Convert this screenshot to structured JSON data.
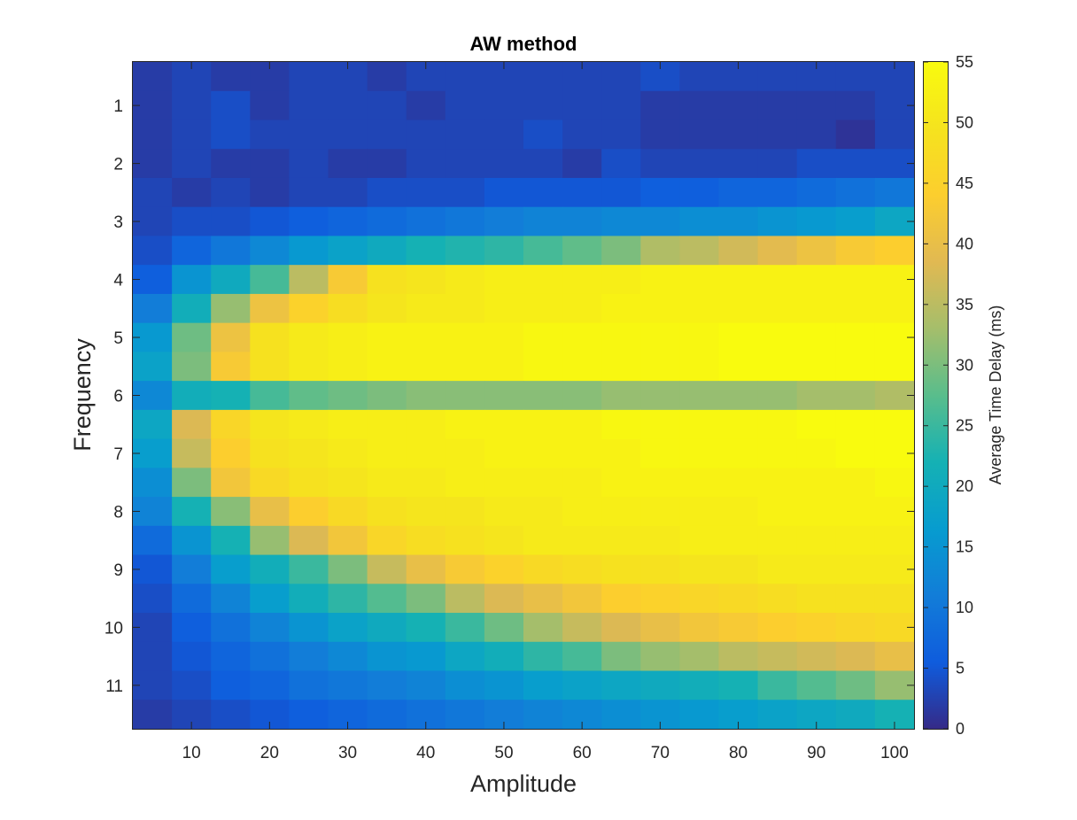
{
  "chart_data": {
    "type": "heatmap",
    "title": "AW method",
    "xlabel": "Amplitude",
    "ylabel": "Frequency",
    "colorbar_label": "Average Time Delay (ms)",
    "colormap": "parula",
    "x": [
      5,
      10,
      15,
      20,
      25,
      30,
      35,
      40,
      45,
      50,
      55,
      60,
      65,
      70,
      75,
      80,
      85,
      90,
      95,
      100
    ],
    "y": [
      0.5,
      1,
      1.5,
      2,
      2.5,
      3,
      3.5,
      4,
      4.5,
      5,
      5.5,
      6,
      6.5,
      7,
      7.5,
      8,
      8.5,
      9,
      9.5,
      10,
      10.5,
      11,
      11.5
    ],
    "xlim": [
      2.5,
      102.5
    ],
    "ylim": [
      0.25,
      11.75
    ],
    "xticks": [
      "10",
      "20",
      "30",
      "40",
      "50",
      "60",
      "70",
      "80",
      "90",
      "100"
    ],
    "yticks": [
      "1",
      "2",
      "3",
      "4",
      "5",
      "6",
      "7",
      "8",
      "9",
      "10",
      "11"
    ],
    "clim": [
      0,
      55
    ],
    "cticks": [
      "0",
      "5",
      "10",
      "15",
      "20",
      "25",
      "30",
      "35",
      "40",
      "45",
      "50",
      "55"
    ],
    "values": [
      [
        2,
        3,
        2,
        2,
        3,
        3,
        2,
        3,
        3,
        3,
        3,
        3,
        3,
        4,
        3,
        3,
        3,
        3,
        3,
        3
      ],
      [
        2,
        3,
        4,
        2,
        3,
        3,
        3,
        2,
        3,
        3,
        3,
        3,
        3,
        2,
        2,
        2,
        2,
        2,
        2,
        3
      ],
      [
        2,
        3,
        4,
        3,
        3,
        3,
        3,
        3,
        3,
        3,
        4,
        3,
        3,
        2,
        2,
        2,
        2,
        2,
        1,
        3
      ],
      [
        2,
        3,
        2,
        2,
        3,
        2,
        2,
        3,
        3,
        3,
        3,
        2,
        4,
        3,
        3,
        3,
        3,
        4,
        4,
        4
      ],
      [
        3,
        2,
        3,
        2,
        3,
        3,
        4,
        4,
        4,
        5,
        5,
        5,
        5,
        6,
        6,
        7,
        7,
        8,
        9,
        10
      ],
      [
        3,
        4,
        4,
        5,
        6,
        7,
        8,
        9,
        10,
        11,
        12,
        12,
        13,
        13,
        14,
        14,
        15,
        16,
        17,
        19
      ],
      [
        4,
        7,
        10,
        13,
        16,
        18,
        20,
        22,
        23,
        24,
        26,
        28,
        30,
        34,
        35,
        37,
        39,
        41,
        43,
        44
      ],
      [
        6,
        15,
        20,
        26,
        35,
        43,
        49,
        50,
        51,
        52,
        52,
        52,
        52,
        53,
        53,
        53,
        53,
        53,
        53,
        53
      ],
      [
        11,
        21,
        32,
        41,
        45,
        48,
        50,
        51,
        51,
        52,
        52,
        52,
        53,
        53,
        53,
        53,
        53,
        53,
        53,
        53
      ],
      [
        16,
        29,
        41,
        49,
        51,
        52,
        53,
        53,
        53,
        53,
        54,
        54,
        54,
        54,
        54,
        55,
        55,
        55,
        55,
        55
      ],
      [
        18,
        30,
        43,
        49,
        51,
        52,
        53,
        53,
        53,
        53,
        54,
        54,
        54,
        54,
        54,
        55,
        55,
        55,
        55,
        55
      ],
      [
        13,
        21,
        22,
        26,
        28,
        29,
        30,
        31,
        31,
        31,
        31,
        31,
        32,
        32,
        32,
        32,
        32,
        33,
        33,
        34
      ],
      [
        19,
        38,
        46,
        50,
        51,
        52,
        52,
        52,
        53,
        53,
        53,
        53,
        54,
        54,
        54,
        54,
        54,
        55,
        55,
        55
      ],
      [
        17,
        36,
        44,
        49,
        50,
        51,
        52,
        52,
        52,
        53,
        53,
        53,
        53,
        54,
        54,
        54,
        54,
        54,
        55,
        55
      ],
      [
        14,
        30,
        42,
        47,
        49,
        50,
        51,
        51,
        52,
        52,
        52,
        52,
        53,
        53,
        53,
        53,
        53,
        53,
        53,
        54
      ],
      [
        12,
        22,
        31,
        40,
        44,
        47,
        49,
        50,
        50,
        51,
        51,
        52,
        52,
        52,
        52,
        52,
        53,
        53,
        53,
        53
      ],
      [
        8,
        15,
        22,
        32,
        38,
        42,
        46,
        48,
        49,
        50,
        51,
        51,
        51,
        51,
        52,
        52,
        52,
        52,
        52,
        52
      ],
      [
        5,
        11,
        17,
        21,
        25,
        30,
        36,
        40,
        43,
        45,
        47,
        48,
        49,
        49,
        50,
        50,
        51,
        51,
        51,
        51
      ],
      [
        4,
        8,
        12,
        17,
        21,
        24,
        27,
        30,
        35,
        38,
        40,
        42,
        44,
        45,
        46,
        47,
        48,
        49,
        49,
        49
      ],
      [
        3,
        6,
        9,
        12,
        15,
        18,
        20,
        22,
        25,
        29,
        33,
        36,
        38,
        40,
        42,
        43,
        44,
        45,
        46,
        47
      ],
      [
        3,
        5,
        7,
        9,
        11,
        13,
        15,
        16,
        19,
        21,
        24,
        26,
        30,
        32,
        33,
        35,
        36,
        37,
        38,
        40
      ],
      [
        3,
        4,
        6,
        7,
        9,
        10,
        11,
        12,
        14,
        15,
        17,
        18,
        19,
        20,
        21,
        22,
        25,
        27,
        29,
        32
      ],
      [
        2,
        3,
        4,
        5,
        6,
        7,
        8,
        9,
        10,
        11,
        12,
        13,
        14,
        15,
        16,
        17,
        18,
        19,
        20,
        22
      ]
    ]
  }
}
